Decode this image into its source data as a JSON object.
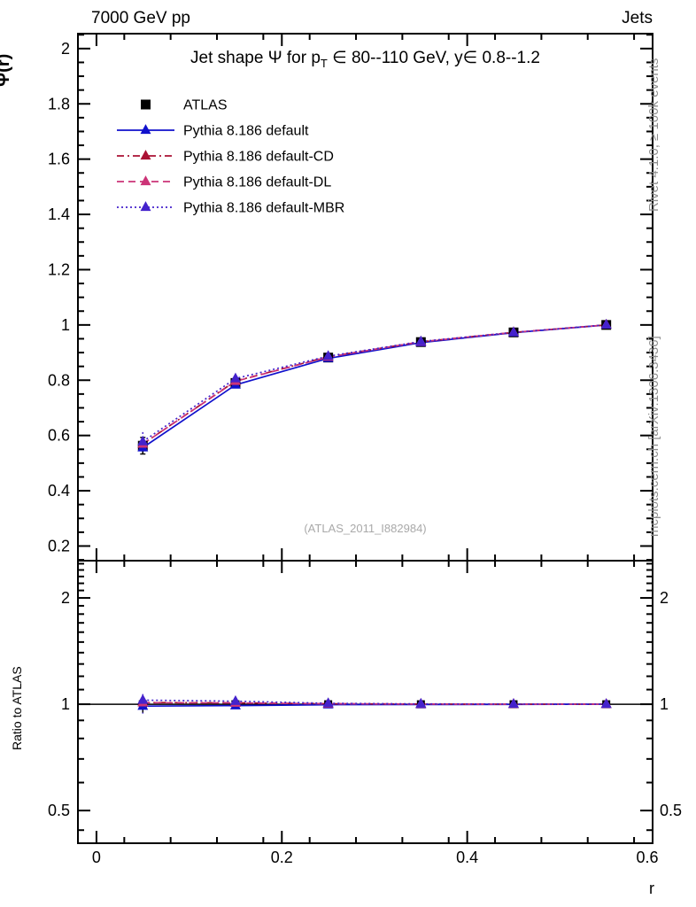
{
  "header": {
    "left": "7000 GeV pp",
    "right": "Jets"
  },
  "side_texts": {
    "top_right": "Rivet 4.1.0, ≥ 100k events",
    "bottom_right": "mcplots.cern.ch [arXiv:1306.3436]"
  },
  "watermark": "(ATLAS_2011_I882984)",
  "chart_data": {
    "type": "line",
    "title": "Jet shape Ψ for p_T ∈ 80--110 GeV, y∈ 0.8--1.2",
    "title_parts": {
      "prefix": "Jet shape Ψ for p",
      "sub": "T",
      "suffix": " ∈ 80--110 GeV, y∈ 0.8--1.2"
    },
    "xlabel": "r",
    "ylabel": "Ψ(r)",
    "ratio_ylabel": "Ratio to ATLAS",
    "xlim": [
      -0.02,
      0.6
    ],
    "ylim": [
      0.147,
      2.054
    ],
    "ratio_ylim": [
      0.404,
      2.55
    ],
    "ratio_scale": "log",
    "grid": false,
    "legend_position": "top-left",
    "x": [
      0.05,
      0.15,
      0.25,
      0.35,
      0.45,
      0.55
    ],
    "x_major_ticks": [
      0,
      0.2,
      0.4,
      0.6
    ],
    "x_tick_labels": [
      "0",
      "0.2",
      "0.4",
      "0.6"
    ],
    "x_minor_step": 0.05,
    "y_major_ticks": [
      0.2,
      0.4,
      0.6,
      0.8,
      1.0,
      1.2,
      1.4,
      1.6,
      1.8,
      2.0
    ],
    "y_tick_labels": [
      "0.2",
      "0.4",
      "0.6",
      "0.8",
      "1",
      "1.2",
      "1.4",
      "1.6",
      "1.8",
      "2"
    ],
    "y_minor_step": 0.05,
    "ratio_major_ticks": [
      0.5,
      1,
      2
    ],
    "ratio_tick_labels": [
      "0.5",
      "1",
      "2"
    ],
    "ratio_minor_ticks": [
      0.44,
      0.6,
      0.7,
      0.8,
      0.9,
      1.1,
      1.2,
      1.3,
      1.4,
      1.5,
      1.6,
      1.7,
      1.8,
      1.9,
      2.1,
      2.2,
      2.3,
      2.4,
      2.5
    ],
    "series": [
      {
        "name": "ATLAS",
        "kind": "data",
        "color": "#000000",
        "marker": "square",
        "values": [
          0.563,
          0.79,
          0.882,
          0.938,
          0.973,
          1.0
        ],
        "errors": [
          0.03,
          0.013,
          0.008,
          0.006,
          0.004,
          0.003
        ],
        "ratio": [
          1,
          1,
          1,
          1,
          1,
          1
        ],
        "ratio_errors": [
          0.053,
          0.016,
          0.009,
          0.006,
          0.004,
          0.003
        ]
      },
      {
        "name": "Pythia 8.186 default",
        "kind": "mc",
        "color": "#1111cc",
        "line": "solid",
        "marker": "triangle",
        "values": [
          0.556,
          0.783,
          0.879,
          0.936,
          0.972,
          1.0
        ],
        "ratio": [
          0.988,
          0.991,
          0.997,
          0.998,
          0.999,
          1.0
        ]
      },
      {
        "name": "Pythia 8.186 default-CD",
        "kind": "mc",
        "color": "#aa1133",
        "line": "dashdot",
        "marker": "triangle",
        "values": [
          0.569,
          0.797,
          0.885,
          0.939,
          0.973,
          1.0
        ],
        "ratio": [
          1.011,
          1.009,
          1.003,
          1.001,
          1.0,
          1.0
        ]
      },
      {
        "name": "Pythia 8.186 default-DL",
        "kind": "mc",
        "color": "#cc3377",
        "line": "dashed",
        "marker": "triangle",
        "values": [
          0.569,
          0.796,
          0.884,
          0.939,
          0.973,
          1.0
        ],
        "ratio": [
          1.01,
          1.008,
          1.003,
          1.001,
          1.0,
          1.0
        ]
      },
      {
        "name": "Pythia 8.186 default-MBR",
        "kind": "mc",
        "color": "#4422cc",
        "line": "dotted",
        "marker": "triangle",
        "values": [
          0.578,
          0.806,
          0.887,
          0.94,
          0.973,
          1.0
        ],
        "ratio": [
          1.027,
          1.02,
          1.006,
          1.002,
          1.001,
          1.0
        ],
        "main_err_first": 0.034,
        "ratio_err_first": 0.068
      }
    ]
  }
}
